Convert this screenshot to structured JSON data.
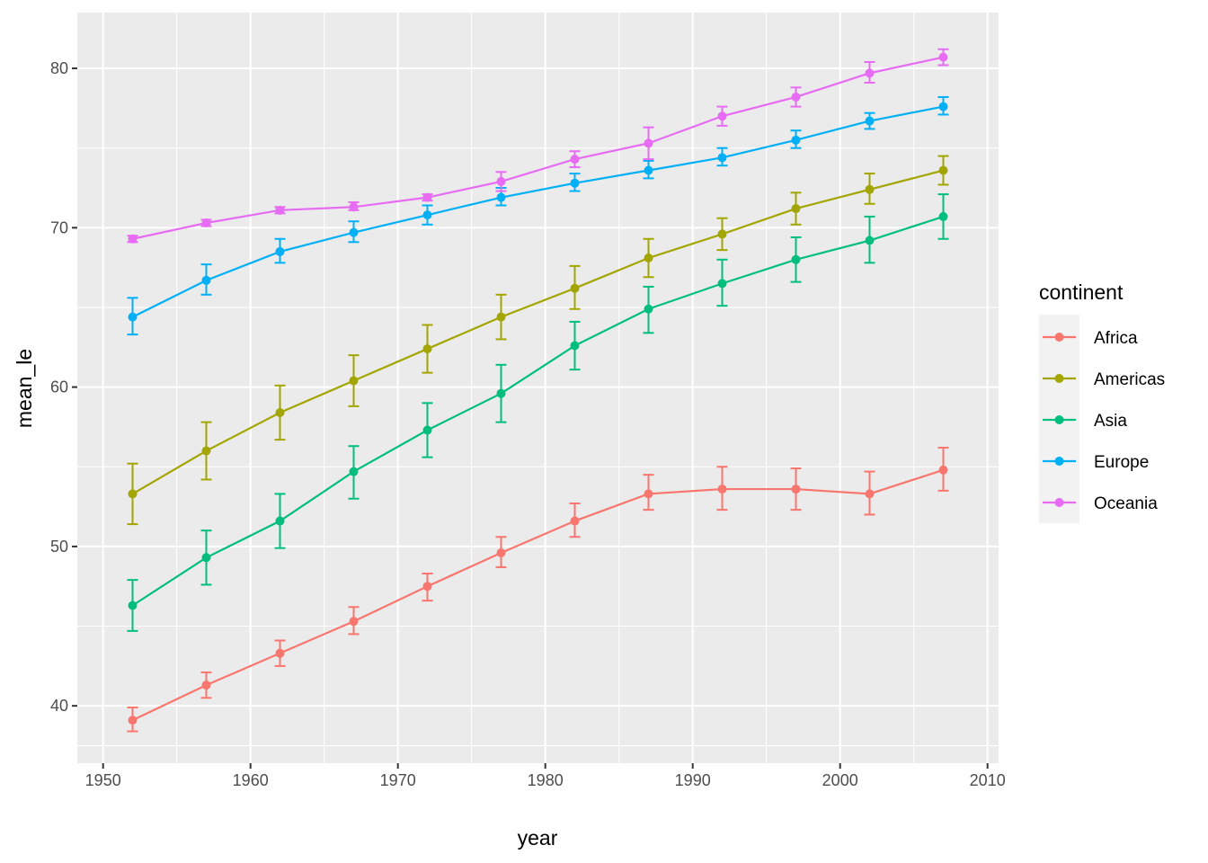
{
  "chart_data": {
    "type": "line",
    "title": "",
    "xlabel": "year",
    "ylabel": "mean_le",
    "xlim": [
      1948.25,
      2010.75
    ],
    "ylim": [
      36.4,
      83.5
    ],
    "x_ticks": [
      1950,
      1960,
      1970,
      1980,
      1990,
      2000,
      2010
    ],
    "x_tick_labels": [
      "1950",
      "1960",
      "1970",
      "1980",
      "1990",
      "2000",
      "2010"
    ],
    "y_ticks": [
      40,
      50,
      60,
      70,
      80
    ],
    "y_tick_labels": [
      "40",
      "50",
      "60",
      "70",
      "80"
    ],
    "x": [
      1952,
      1957,
      1962,
      1967,
      1972,
      1977,
      1982,
      1987,
      1992,
      1997,
      2002,
      2007
    ],
    "grid": true,
    "error_bars": true,
    "legend": {
      "title": "continent",
      "position": "right"
    },
    "series": [
      {
        "name": "Africa",
        "color": "#F8766D",
        "values": [
          39.1,
          41.3,
          43.3,
          45.3,
          47.5,
          49.6,
          51.6,
          53.3,
          53.6,
          53.6,
          53.3,
          54.8
        ],
        "lower": [
          38.4,
          40.5,
          42.5,
          44.5,
          46.6,
          48.7,
          50.6,
          52.3,
          52.3,
          52.3,
          52.0,
          53.5
        ],
        "upper": [
          39.9,
          42.1,
          44.1,
          46.2,
          48.3,
          50.6,
          52.7,
          54.5,
          55.0,
          54.9,
          54.7,
          56.2
        ]
      },
      {
        "name": "Americas",
        "color": "#A3A500",
        "values": [
          53.3,
          56.0,
          58.4,
          60.4,
          62.4,
          64.4,
          66.2,
          68.1,
          69.6,
          71.2,
          72.4,
          73.6
        ],
        "lower": [
          51.4,
          54.2,
          56.7,
          58.8,
          60.9,
          63.0,
          64.9,
          66.9,
          68.6,
          70.2,
          71.5,
          72.7
        ],
        "upper": [
          55.2,
          57.8,
          60.1,
          62.0,
          63.9,
          65.8,
          67.6,
          69.3,
          70.6,
          72.2,
          73.4,
          74.5
        ]
      },
      {
        "name": "Asia",
        "color": "#00BF7D",
        "values": [
          46.3,
          49.3,
          51.6,
          54.7,
          57.3,
          59.6,
          62.6,
          64.9,
          66.5,
          68.0,
          69.2,
          70.7
        ],
        "lower": [
          44.7,
          47.6,
          49.9,
          53.0,
          55.6,
          57.8,
          61.1,
          63.4,
          65.1,
          66.6,
          67.8,
          69.3
        ],
        "upper": [
          47.9,
          51.0,
          53.3,
          56.3,
          59.0,
          61.4,
          64.1,
          66.3,
          68.0,
          69.4,
          70.7,
          72.1
        ]
      },
      {
        "name": "Europe",
        "color": "#00B0F6",
        "values": [
          64.4,
          66.7,
          68.5,
          69.7,
          70.8,
          71.9,
          72.8,
          73.6,
          74.4,
          75.5,
          76.7,
          77.6
        ],
        "lower": [
          63.3,
          65.8,
          67.8,
          69.1,
          70.2,
          71.4,
          72.3,
          73.1,
          73.9,
          75.0,
          76.2,
          77.1
        ],
        "upper": [
          65.6,
          67.7,
          69.3,
          70.4,
          71.4,
          72.5,
          73.4,
          74.2,
          75.0,
          76.1,
          77.2,
          78.2
        ]
      },
      {
        "name": "Oceania",
        "color": "#E76BF3",
        "values": [
          69.3,
          70.3,
          71.1,
          71.3,
          71.9,
          72.9,
          74.3,
          75.3,
          77.0,
          78.2,
          79.7,
          80.7
        ],
        "lower": [
          69.1,
          70.1,
          70.9,
          71.1,
          71.7,
          72.3,
          73.8,
          74.3,
          76.4,
          77.6,
          79.1,
          80.2
        ],
        "upper": [
          69.5,
          70.5,
          71.3,
          71.6,
          72.1,
          73.5,
          74.8,
          76.3,
          77.6,
          78.8,
          80.4,
          81.2
        ]
      }
    ]
  }
}
